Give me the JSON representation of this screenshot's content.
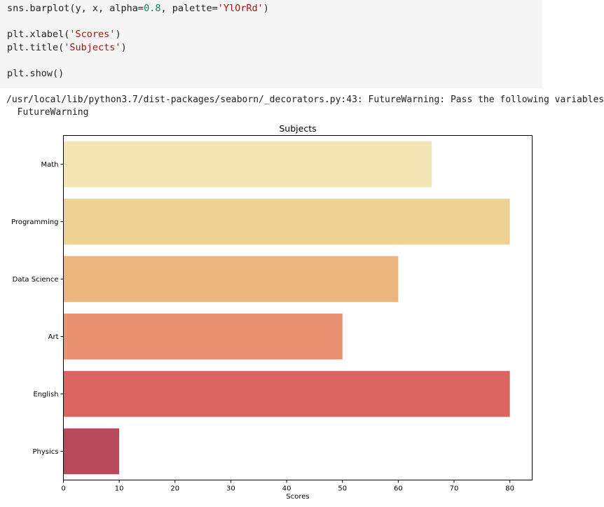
{
  "code": {
    "line1": {
      "a": "sns.barplot(y, x, alpha=",
      "b": "0.8",
      "c": ", palette=",
      "d": "'YlOrRd'",
      "e": ")"
    },
    "line2": {
      "a": "plt.xlabel(",
      "b": "'Scores'",
      "c": ")"
    },
    "line3": {
      "a": "plt.title(",
      "b": "'Subjects'",
      "c": ")"
    },
    "line4": "plt.show()"
  },
  "output": {
    "warning_line1": "/usr/local/lib/python3.7/dist-packages/seaborn/_decorators.py:43: FutureWarning: Pass the following variables",
    "warning_line2": "  FutureWarning"
  },
  "chart_data": {
    "type": "bar",
    "orientation": "horizontal",
    "title": "Subjects",
    "xlabel": "Scores",
    "ylabel": "",
    "categories": [
      "Math",
      "Programming",
      "Data Science",
      "Art",
      "English",
      "Physics"
    ],
    "values": [
      66,
      80,
      60,
      50,
      80,
      10
    ],
    "xlim": [
      0,
      84
    ],
    "xticks": [
      0,
      10,
      20,
      30,
      40,
      50,
      60,
      70,
      80
    ],
    "colors": [
      "#f3e6b5",
      "#eed293",
      "#ebb57c",
      "#e99170",
      "#dc6461",
      "#b94a5d"
    ],
    "grid": false,
    "legend": "none"
  }
}
